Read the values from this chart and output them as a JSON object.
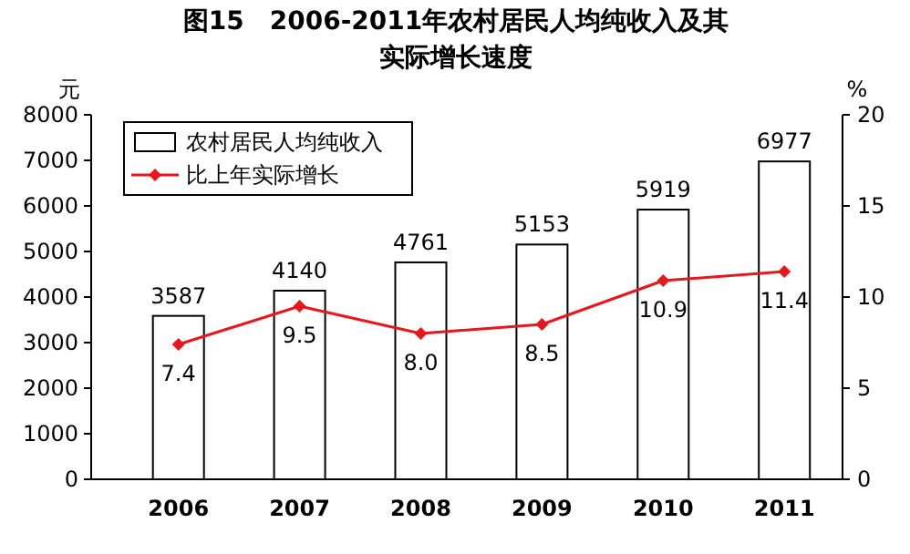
{
  "chart_data": {
    "type": "bar",
    "title": "图15　2006-2011年农村居民人均纯收入及其实际增长速度",
    "categories": [
      "2006",
      "2007",
      "2008",
      "2009",
      "2010",
      "2011"
    ],
    "ylabel": "元",
    "y2label": "%",
    "ylim": [
      0,
      8000
    ],
    "yticks": [
      0,
      1000,
      2000,
      3000,
      4000,
      5000,
      6000,
      7000,
      8000
    ],
    "y2lim": [
      0,
      20
    ],
    "y2ticks": [
      0,
      5,
      10,
      15,
      20
    ],
    "series": [
      {
        "name": "农村居民人均纯收入",
        "color": "#ffffff",
        "values": [
          3587,
          4140,
          4761,
          5153,
          5919,
          6977
        ]
      },
      {
        "name": "比上年实际增长",
        "type": "line",
        "axis": "y2",
        "color": "#e8171b",
        "marker": "diamond",
        "values": [
          7.4,
          9.5,
          8.0,
          8.5,
          10.9,
          11.4
        ],
        "value_labels": [
          "7.4",
          "9.5",
          "8.0",
          "8.5",
          "10.9",
          "11.4"
        ]
      }
    ],
    "data_labels": true,
    "grid": false,
    "legend": "top left"
  }
}
